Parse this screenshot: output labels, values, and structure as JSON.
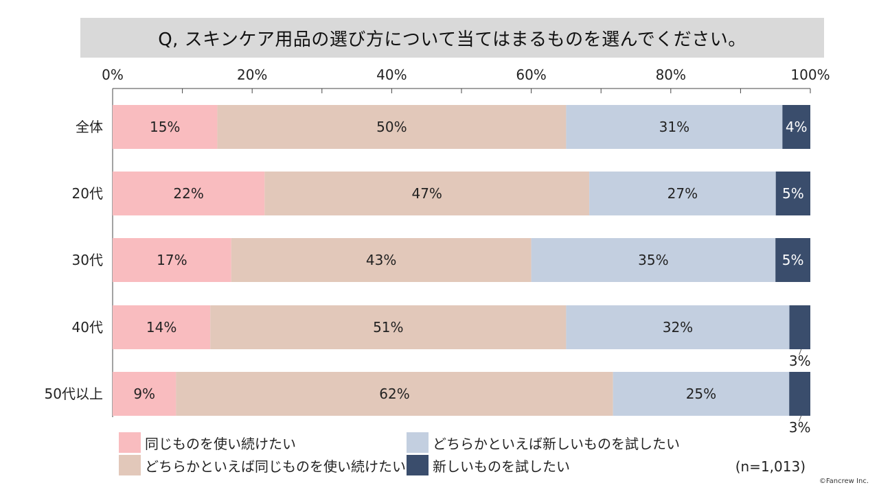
{
  "chart_data": {
    "type": "bar",
    "orientation": "horizontal",
    "stacked": true,
    "title": "Q, スキンケア用品の選び方について当てはまるものを選んでください。",
    "categories": [
      "全体",
      "20代",
      "30代",
      "40代",
      "50代以上"
    ],
    "series": [
      {
        "name": "同じものを使い続けたい",
        "values": [
          15,
          22,
          17,
          14,
          9
        ],
        "color": "#f9bcbf"
      },
      {
        "name": "どちらかといえば同じものを使い続けたい",
        "values": [
          50,
          47,
          43,
          51,
          62
        ],
        "color": "#e2c8ba"
      },
      {
        "name": "どちらかといえば新しいものを試したい",
        "values": [
          31,
          27,
          35,
          32,
          25
        ],
        "color": "#c3cfe0"
      },
      {
        "name": "新しいものを試したい",
        "values": [
          4,
          5,
          5,
          3,
          3
        ],
        "color": "#3a4d6c"
      }
    ],
    "value_suffix": "%",
    "xlim": [
      0,
      100
    ],
    "x_ticks": [
      "0%",
      "20%",
      "40%",
      "60%",
      "80%",
      "100%"
    ],
    "legend_position": "bottom",
    "grid": false
  },
  "note": "(n=1,013)",
  "copyright": "©Fancrew Inc."
}
